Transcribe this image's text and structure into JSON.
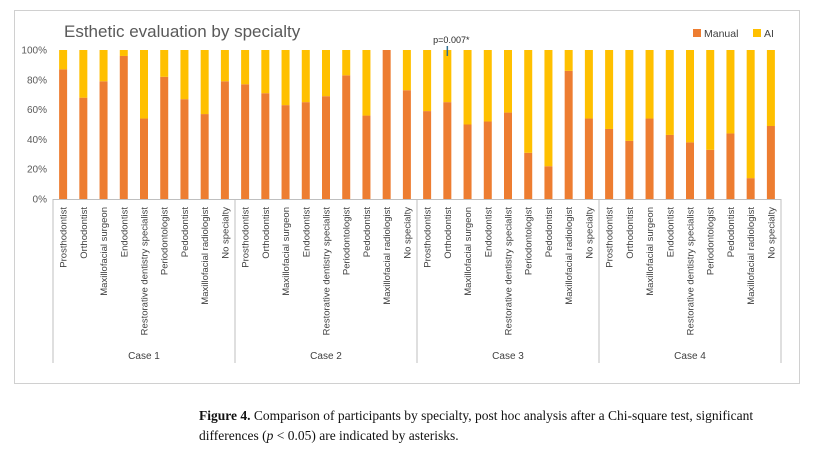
{
  "chart_data": {
    "type": "bar",
    "stacked": true,
    "title": "Esthetic evaluation by specialty",
    "legend_position": "top-right",
    "ylim": [
      0,
      100
    ],
    "yticks": [
      "0%",
      "20%",
      "40%",
      "60%",
      "80%",
      "100%"
    ],
    "grid": false,
    "annotation": {
      "text": "p=0.007*",
      "group": "Case 3",
      "category": "Orthodontist"
    },
    "categories": [
      "Prosthodontist",
      "Orthodontist",
      "Maxillofacial surgeon",
      "Endodontist",
      "Restorative dentistry specialist",
      "Periodontologist",
      "Pedodontist",
      "Maxillofacial radiologist",
      "No specialty"
    ],
    "groups": [
      "Case 1",
      "Case 2",
      "Case 3",
      "Case 4"
    ],
    "series": [
      {
        "name": "Manual",
        "color": "#ed7d31",
        "values": [
          [
            87,
            68,
            79,
            96,
            54,
            82,
            67,
            57,
            79
          ],
          [
            77,
            71,
            63,
            65,
            69,
            83,
            56,
            100,
            73
          ],
          [
            59,
            65,
            50,
            52,
            58,
            31,
            22,
            86,
            54
          ],
          [
            47,
            39,
            54,
            43,
            38,
            33,
            44,
            14,
            49
          ]
        ]
      },
      {
        "name": "AI",
        "color": "#ffc000",
        "values": [
          [
            13,
            32,
            21,
            4,
            46,
            18,
            33,
            43,
            21
          ],
          [
            23,
            29,
            37,
            35,
            31,
            17,
            44,
            0,
            27
          ],
          [
            41,
            35,
            50,
            48,
            42,
            69,
            78,
            14,
            46
          ],
          [
            53,
            61,
            46,
            57,
            62,
            67,
            56,
            86,
            51
          ]
        ]
      }
    ]
  },
  "caption": {
    "label": "Figure 4.",
    "text_before": " Comparison of participants by specialty, post hoc analysis after a Chi-square test, significant differences (",
    "p_symbol": "p",
    "text_after": " < 0.05) are indicated by asterisks."
  }
}
